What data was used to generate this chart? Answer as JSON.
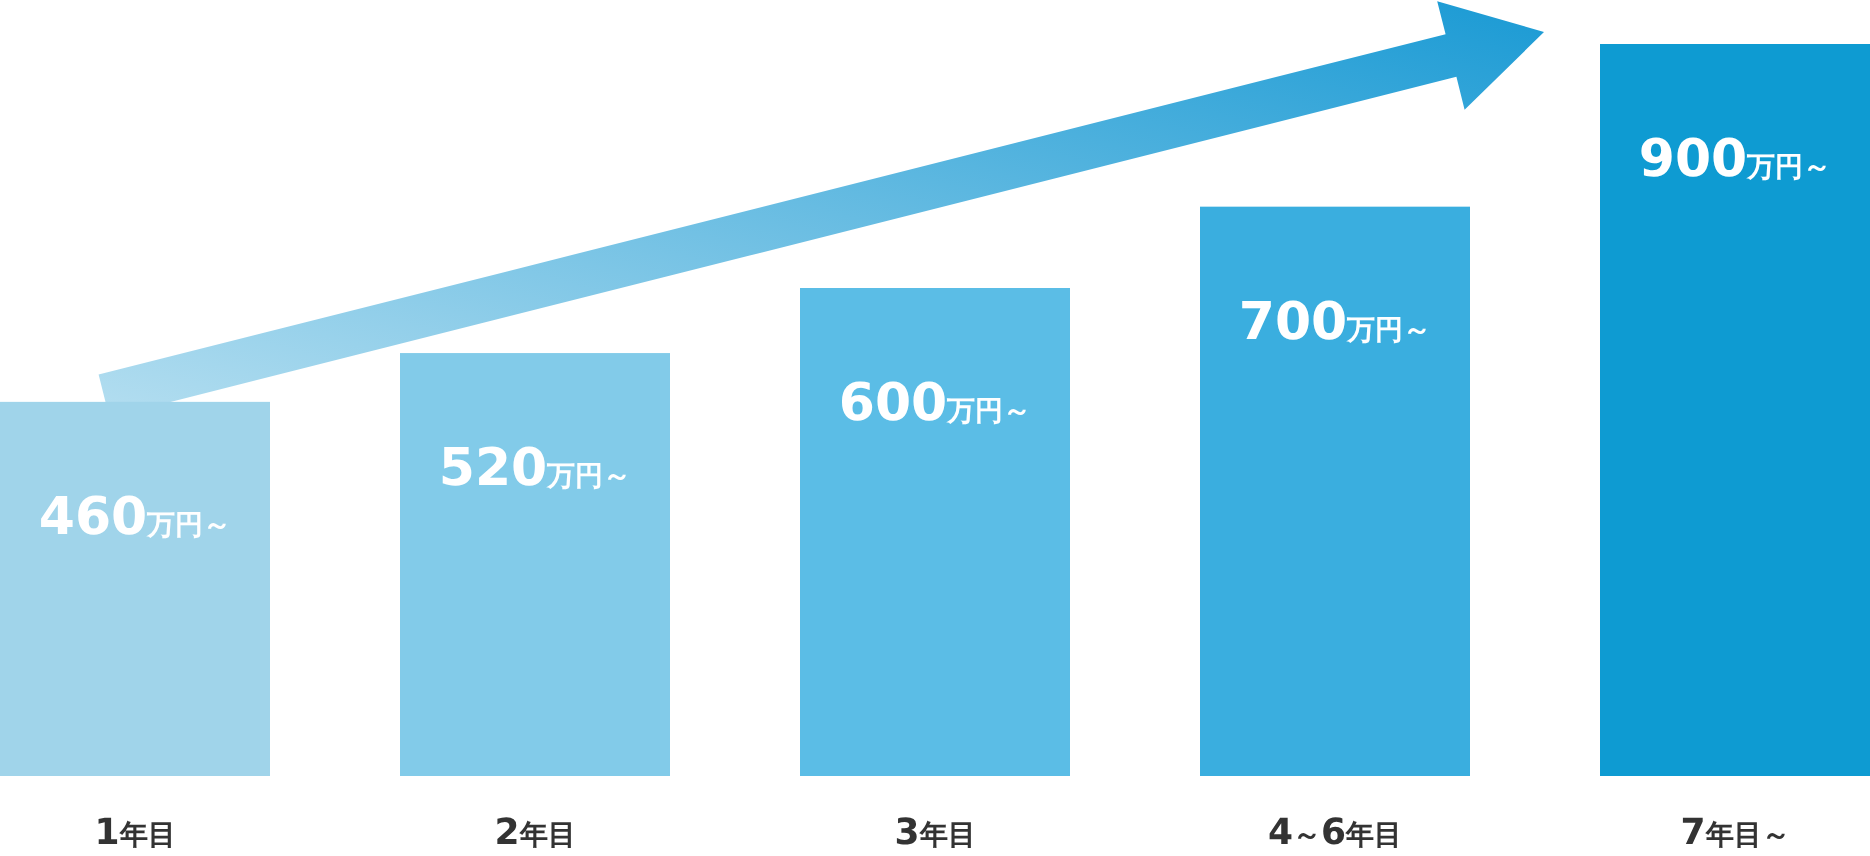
{
  "chart_data": {
    "type": "bar",
    "categories": [
      "1年目",
      "2年目",
      "3年目",
      "4～6年目",
      "7年目～"
    ],
    "values": [
      460,
      520,
      600,
      700,
      900
    ],
    "colors": [
      "#a0d4ea",
      "#82cbe9",
      "#5bbde6",
      "#3aaedf",
      "#0e9bd2"
    ],
    "value_labels": [
      "460万円～",
      "520万円～",
      "600万円～",
      "700万円～",
      "900万円～"
    ],
    "tick_labels": "x"
  }
}
